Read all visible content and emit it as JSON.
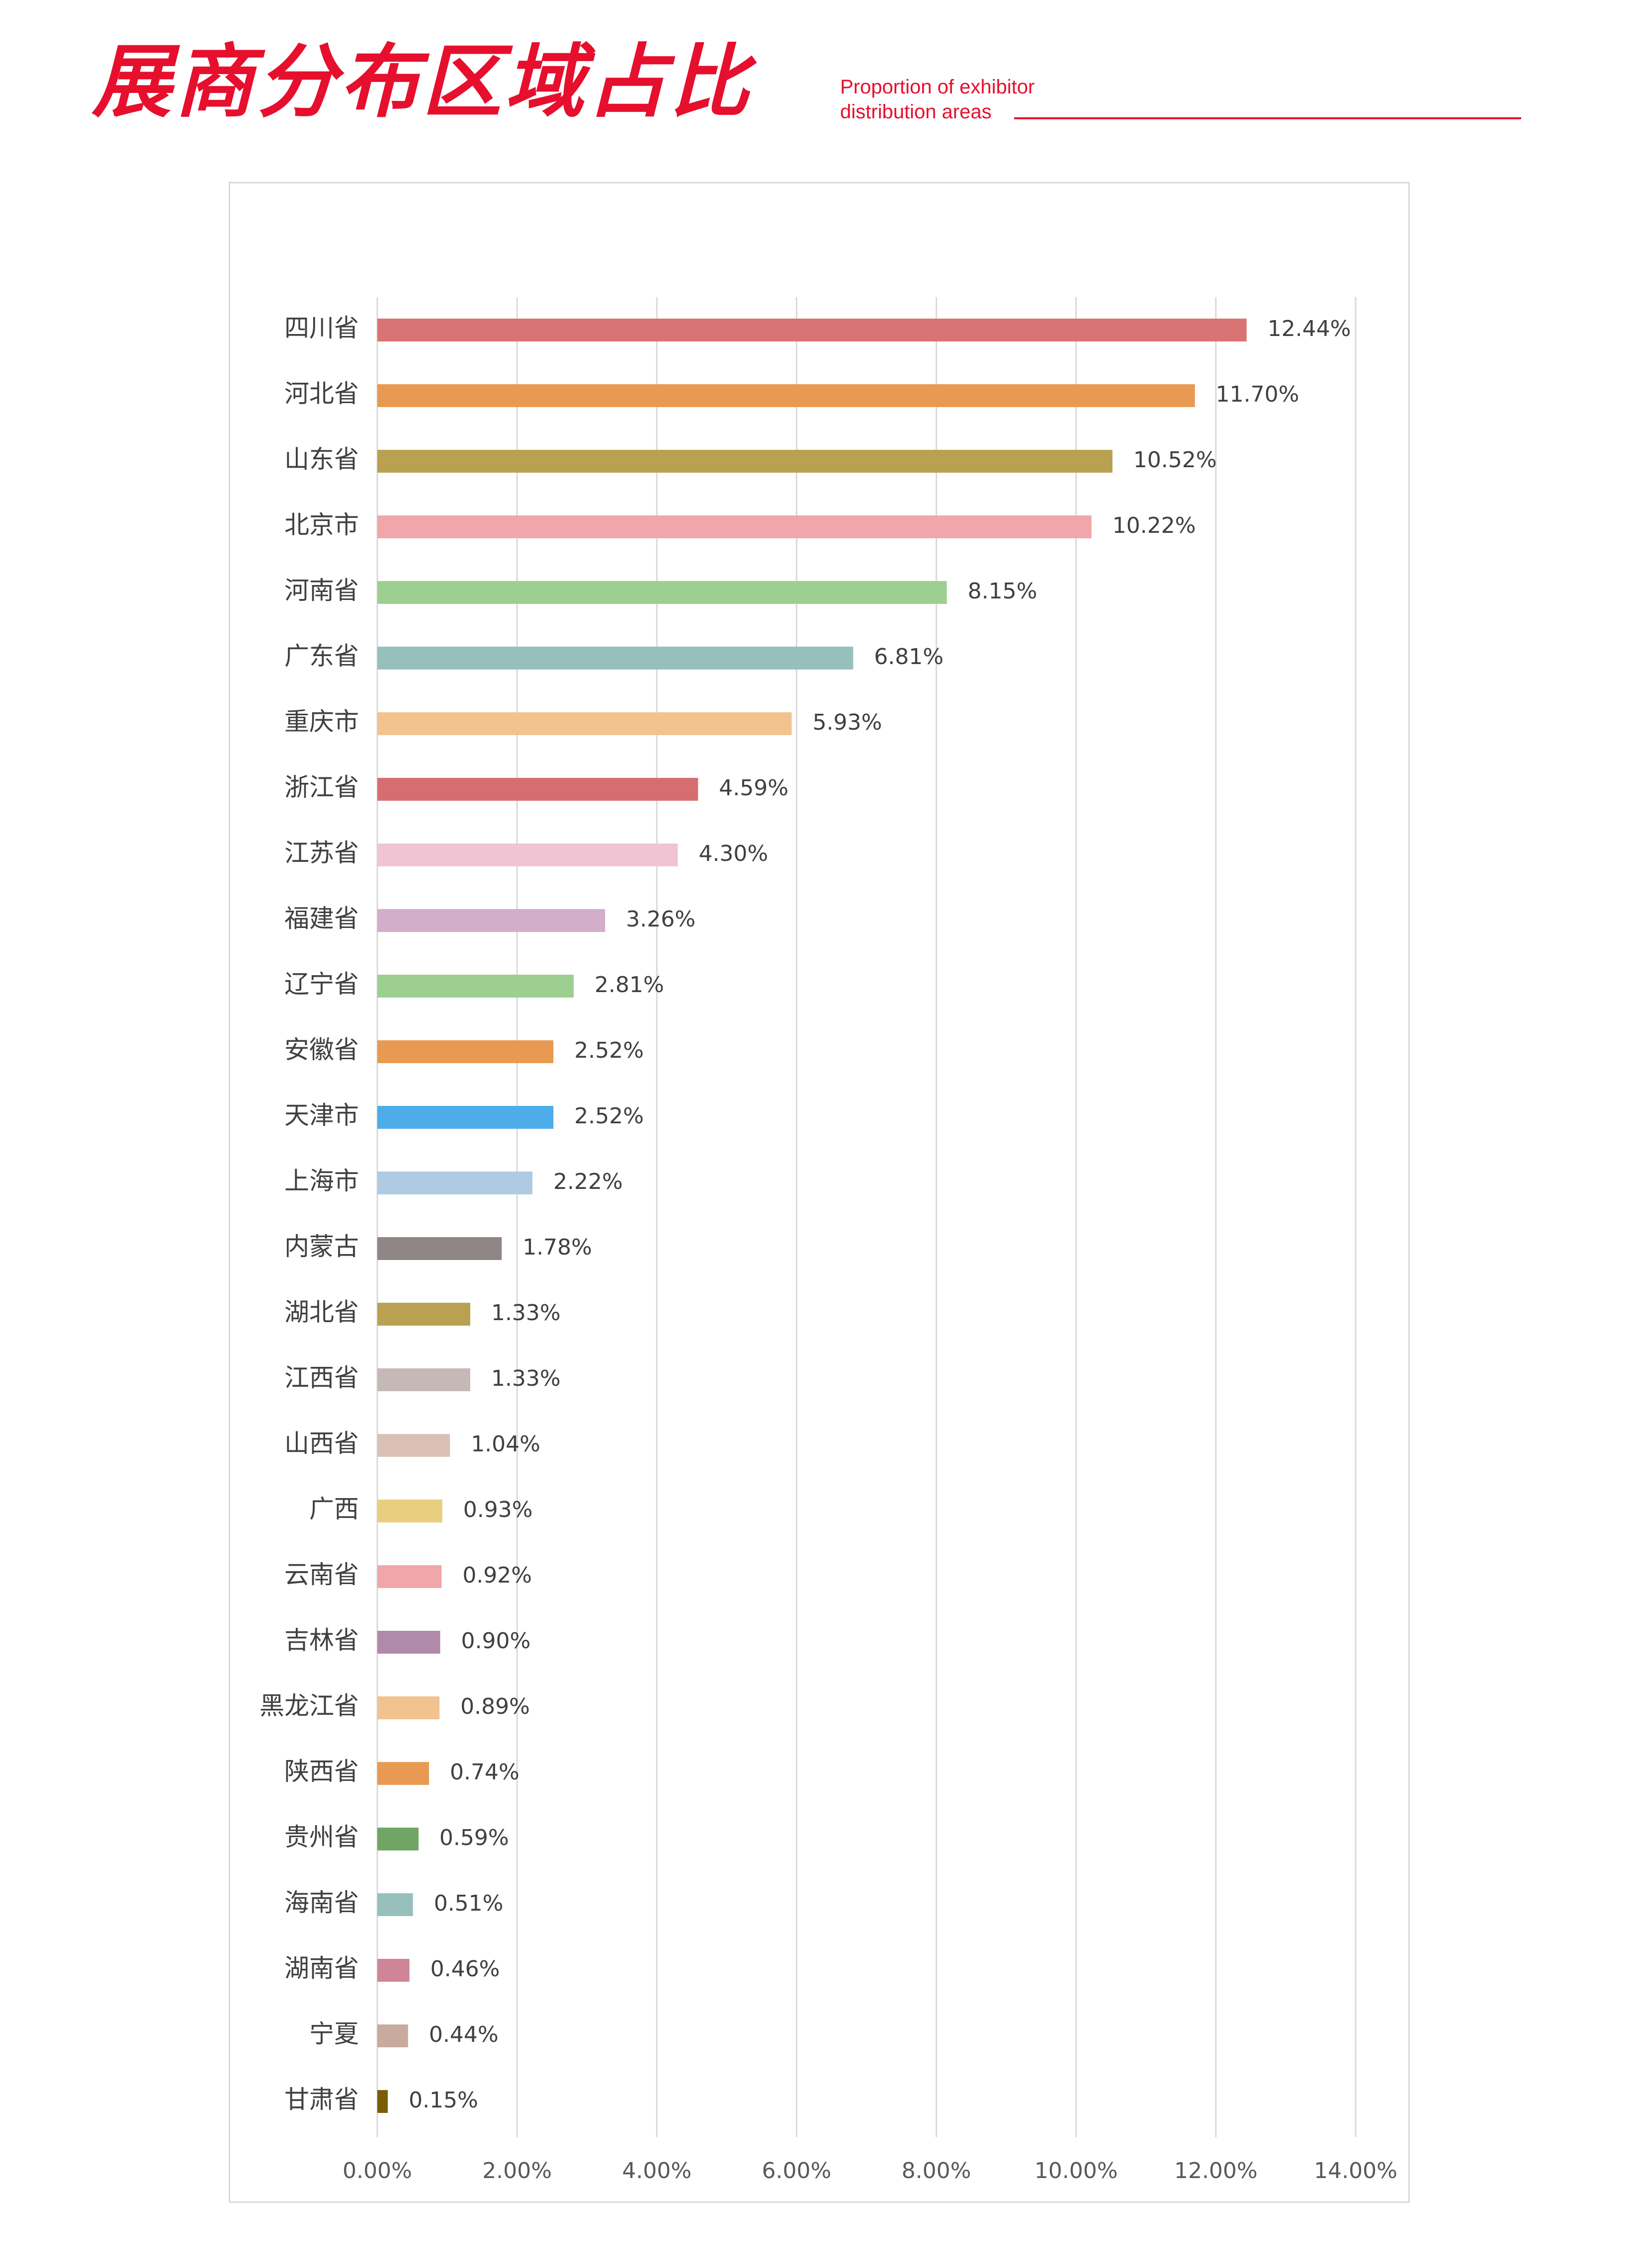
{
  "header": {
    "title_cn": "展商分布区域占比",
    "title_en_line1": "Proportion of exhibitor",
    "title_en_line2": "distribution areas"
  },
  "colors": {
    "accent": "#e60f2d",
    "frame": "#d9d9d9",
    "grid": "#d9d9d9"
  },
  "chart_data": {
    "type": "bar",
    "orientation": "horizontal",
    "title": "",
    "xlabel": "",
    "ylabel": "",
    "xlim": [
      0,
      14
    ],
    "ticks": [
      0,
      2,
      4,
      6,
      8,
      10,
      12,
      14
    ],
    "tick_labels": [
      "0.00%",
      "2.00%",
      "4.00%",
      "6.00%",
      "8.00%",
      "10.00%",
      "12.00%",
      "14.00%"
    ],
    "grid": "vertical",
    "legend": "none",
    "categories": [
      "四川省",
      "河北省",
      "山东省",
      "北京市",
      "河南省",
      "广东省",
      "重庆市",
      "浙江省",
      "江苏省",
      "福建省",
      "辽宁省",
      "安徽省",
      "天津市",
      "上海市",
      "内蒙古",
      "湖北省",
      "江西省",
      "山西省",
      "广西",
      "云南省",
      "吉林省",
      "黑龙江省",
      "陕西省",
      "贵州省",
      "海南省",
      "湖南省",
      "宁夏",
      "甘肃省"
    ],
    "values": [
      12.44,
      11.7,
      10.52,
      10.22,
      8.15,
      6.81,
      5.93,
      4.59,
      4.3,
      3.26,
      2.81,
      2.52,
      2.52,
      2.22,
      1.78,
      1.33,
      1.33,
      1.04,
      0.93,
      0.92,
      0.9,
      0.89,
      0.74,
      0.59,
      0.51,
      0.46,
      0.44,
      0.15
    ],
    "labels": [
      "12.44%",
      "11.70%",
      "10.52%",
      "10.22%",
      "8.15%",
      "6.81%",
      "5.93%",
      "4.59%",
      "4.30%",
      "3.26%",
      "2.81%",
      "2.52%",
      "2.52%",
      "2.22%",
      "1.78%",
      "1.33%",
      "1.33%",
      "1.04%",
      "0.93%",
      "0.92%",
      "0.90%",
      "0.89%",
      "0.74%",
      "0.59%",
      "0.51%",
      "0.46%",
      "0.44%",
      "0.15%"
    ],
    "bar_colors": [
      "#da7373",
      "#e89a52",
      "#b9a152",
      "#f1a7aa",
      "#9dcf90",
      "#97c0bc",
      "#f2c38f",
      "#d66e70",
      "#f0c4d3",
      "#d3adca",
      "#9dcf90",
      "#e89a52",
      "#4cadea",
      "#afcbe3",
      "#8e8785",
      "#b9a152",
      "#c4b9b5",
      "#dbc1b5",
      "#e8ce7f",
      "#f1a7aa",
      "#b28aa9",
      "#f2c38f",
      "#e89a52",
      "#71a566",
      "#97c0bc",
      "#d08497",
      "#c8ab9e",
      "#7a5d07"
    ]
  }
}
